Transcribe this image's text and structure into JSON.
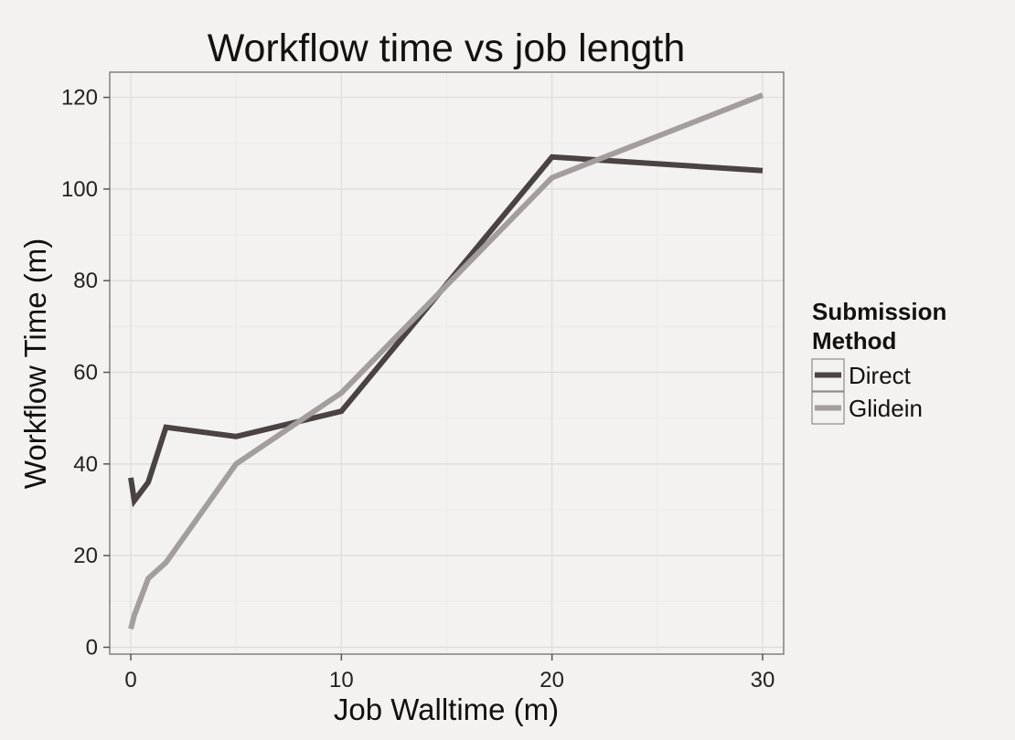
{
  "chart_data": {
    "type": "line",
    "title": "Workflow time vs job length",
    "xlabel": "Job Walltime (m)",
    "ylabel": "Workflow Time (m)",
    "xlim": [
      -1,
      31
    ],
    "ylim": [
      -1.5,
      125.5
    ],
    "x_ticks": [
      0,
      10,
      20,
      30
    ],
    "x_tick_labels": [
      "0",
      "10",
      "20",
      "30"
    ],
    "y_ticks": [
      0,
      20,
      40,
      60,
      80,
      100,
      120
    ],
    "y_tick_labels": [
      "0",
      "20",
      "40",
      "60",
      "80",
      "100",
      "120"
    ],
    "grid": true,
    "legend": {
      "title_lines": [
        "Submission",
        "Method"
      ],
      "position": "right"
    },
    "series": [
      {
        "name": "Direct",
        "color": "#4a4341",
        "x": [
          0,
          0.17,
          0.83,
          1.67,
          5,
          10,
          20,
          30
        ],
        "y": [
          37,
          32,
          36,
          48,
          46,
          51.5,
          107,
          104
        ]
      },
      {
        "name": "Glidein",
        "color": "#a39e9b",
        "x": [
          0,
          0.17,
          0.83,
          1.67,
          5,
          10,
          20,
          30
        ],
        "y": [
          4,
          7,
          15,
          18.5,
          40,
          55.5,
          102.5,
          120.5
        ]
      }
    ]
  }
}
